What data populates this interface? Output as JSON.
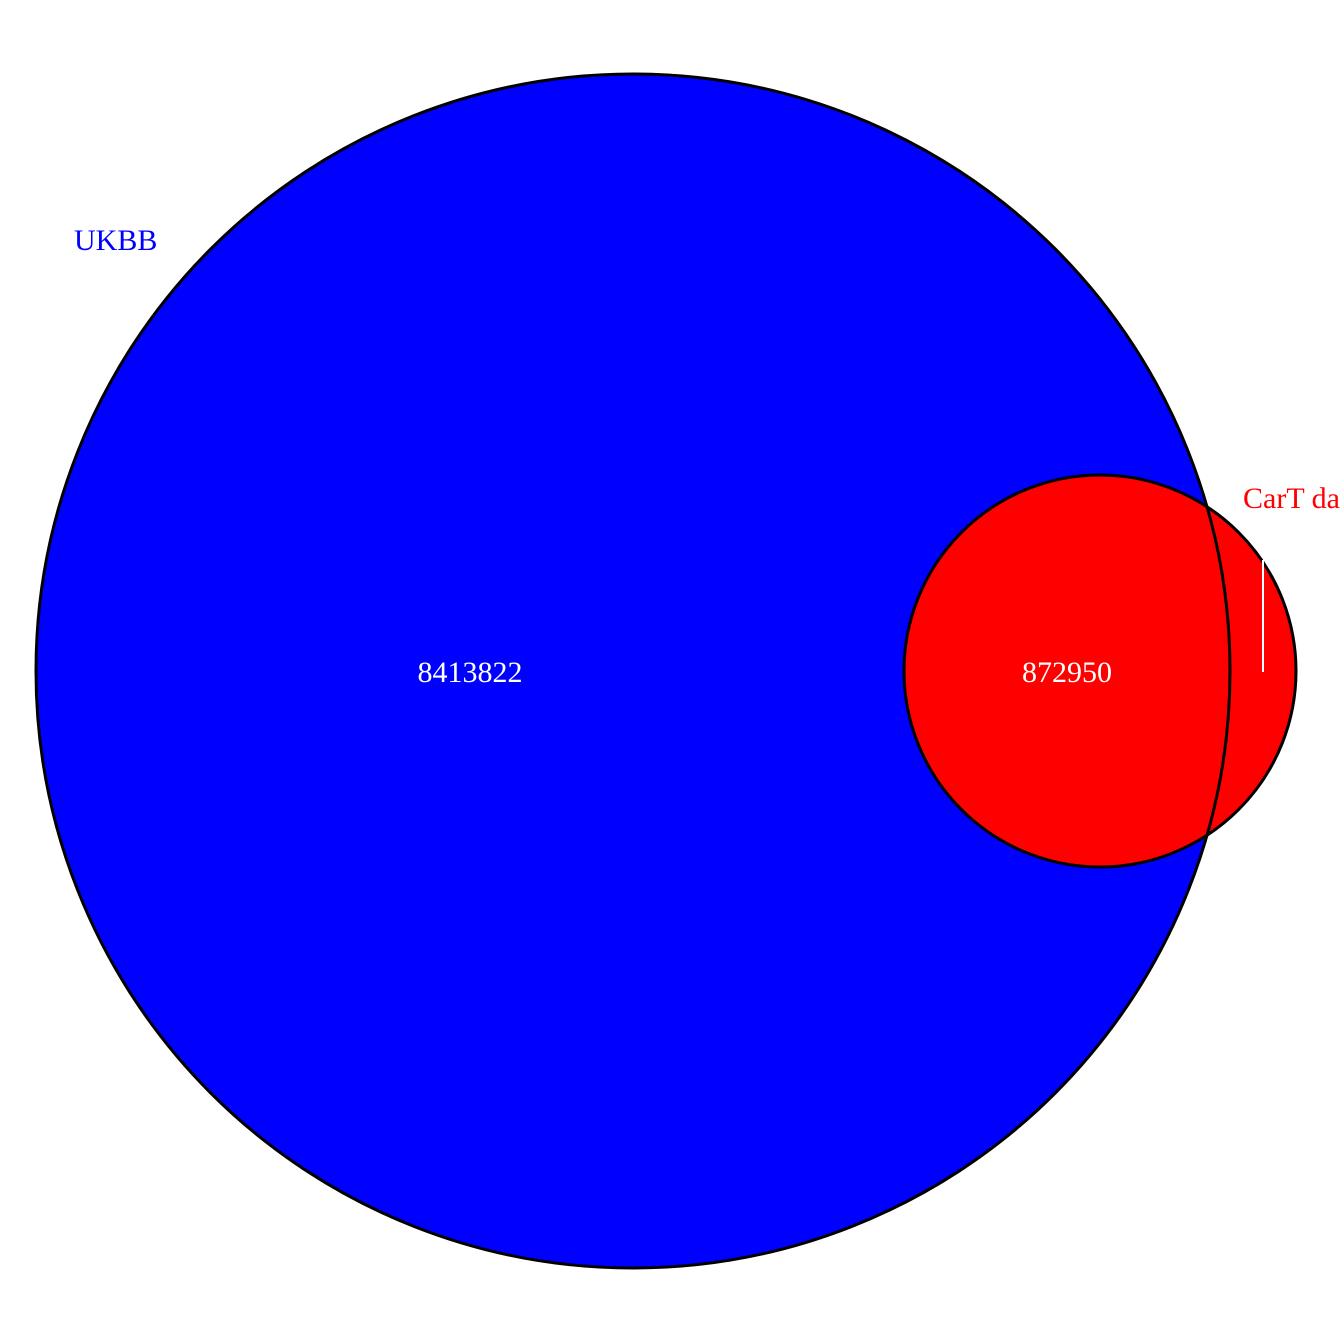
{
  "venn": {
    "sets": [
      {
        "id": "ukbb",
        "label": "UKBB",
        "color": "#0000ff"
      },
      {
        "id": "cart",
        "label": "CarT da",
        "color": "#ff0000"
      }
    ],
    "regions": {
      "ukbb_only": "8413822",
      "shared": "872950"
    },
    "count_label_color": "#ffffff",
    "outline_color": "#000000"
  }
}
